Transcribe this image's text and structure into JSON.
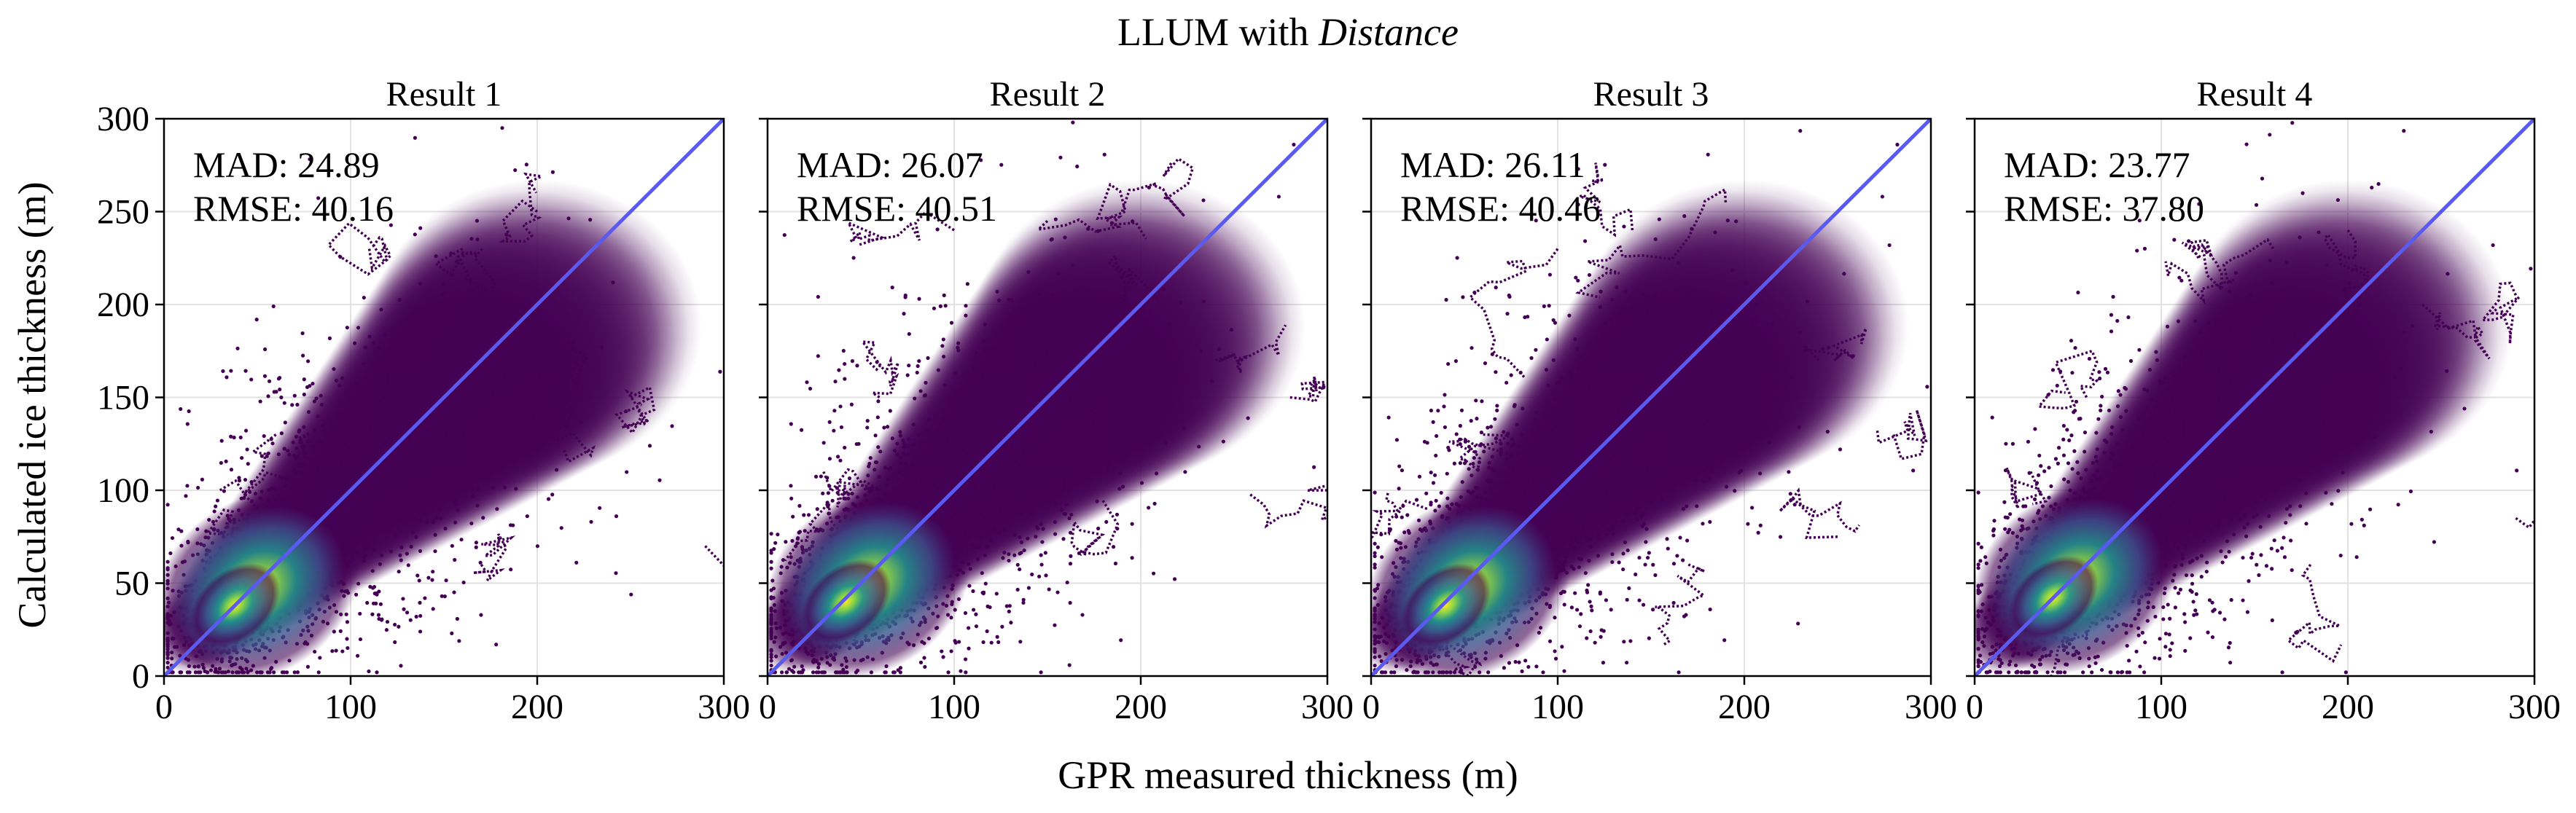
{
  "figure": {
    "suptitle_plain": "LLUM with ",
    "suptitle_italic": "Distance",
    "xlabel": "GPR measured thickness (m)",
    "ylabel": "Calculated ice thickness (m)",
    "xlim": [
      0,
      300
    ],
    "ylim": [
      0,
      300
    ],
    "xticks": [
      "0",
      "100",
      "200",
      "300"
    ],
    "yticks": [
      "0",
      "50",
      "100",
      "150",
      "200",
      "250",
      "300"
    ]
  },
  "colors": {
    "identity_line": "#5a5af0",
    "colormap": [
      "#440154",
      "#3b528b",
      "#21918c",
      "#5ec962",
      "#fde725"
    ],
    "grid": "#e2e2e2"
  },
  "chart_data": [
    {
      "type": "scatter",
      "title": "Result 1",
      "mad_text": "MAD: 24.89",
      "rmse_text": "RMSE: 40.16",
      "reference_line": {
        "x": [
          0,
          300
        ],
        "y": [
          0,
          300
        ]
      },
      "density_peak": {
        "x": 38,
        "y": 38
      },
      "points_approx": [
        [
          40,
          40
        ],
        [
          80,
          75
        ],
        [
          120,
          110
        ],
        [
          150,
          135
        ],
        [
          180,
          150
        ],
        [
          200,
          170
        ],
        [
          220,
          180
        ],
        [
          250,
          150
        ],
        [
          290,
          70
        ],
        [
          160,
          230
        ],
        [
          200,
          250
        ],
        [
          110,
          230
        ],
        [
          30,
          100
        ],
        [
          60,
          130
        ],
        [
          170,
          60
        ]
      ]
    },
    {
      "type": "scatter",
      "title": "Result 2",
      "mad_text": "MAD: 26.07",
      "rmse_text": "RMSE: 40.51",
      "reference_line": {
        "x": [
          0,
          300
        ],
        "y": [
          0,
          300
        ]
      },
      "density_peak": {
        "x": 42,
        "y": 40
      },
      "points_approx": [
        [
          40,
          40
        ],
        [
          80,
          80
        ],
        [
          120,
          115
        ],
        [
          150,
          140
        ],
        [
          180,
          160
        ],
        [
          200,
          180
        ],
        [
          240,
          170
        ],
        [
          280,
          150
        ],
        [
          190,
          250
        ],
        [
          150,
          245
        ],
        [
          100,
          240
        ],
        [
          30,
          110
        ],
        [
          60,
          150
        ],
        [
          170,
          65
        ],
        [
          300,
          100
        ]
      ]
    },
    {
      "type": "scatter",
      "title": "Result 3",
      "mad_text": "MAD: 26.11",
      "rmse_text": "RMSE: 40.46",
      "reference_line": {
        "x": [
          0,
          300
        ],
        "y": [
          0,
          300
        ]
      },
      "density_peak": {
        "x": 40,
        "y": 38
      },
      "points_approx": [
        [
          40,
          40
        ],
        [
          80,
          75
        ],
        [
          120,
          110
        ],
        [
          150,
          130
        ],
        [
          180,
          145
        ],
        [
          200,
          160
        ],
        [
          240,
          170
        ],
        [
          280,
          130
        ],
        [
          190,
          255
        ],
        [
          140,
          240
        ],
        [
          100,
          230
        ],
        [
          30,
          90
        ],
        [
          60,
          130
        ],
        [
          170,
          60
        ],
        [
          250,
          75
        ]
      ]
    },
    {
      "type": "scatter",
      "title": "Result 4",
      "mad_text": "MAD: 23.77",
      "rmse_text": "RMSE: 37.80",
      "reference_line": {
        "x": [
          0,
          300
        ],
        "y": [
          0,
          300
        ]
      },
      "density_peak": {
        "x": 42,
        "y": 42
      },
      "points_approx": [
        [
          40,
          40
        ],
        [
          80,
          80
        ],
        [
          120,
          120
        ],
        [
          150,
          150
        ],
        [
          180,
          165
        ],
        [
          200,
          185
        ],
        [
          240,
          200
        ],
        [
          290,
          205
        ],
        [
          200,
          240
        ],
        [
          160,
          230
        ],
        [
          120,
          225
        ],
        [
          30,
          110
        ],
        [
          60,
          150
        ],
        [
          180,
          60
        ],
        [
          290,
          85
        ]
      ]
    }
  ]
}
